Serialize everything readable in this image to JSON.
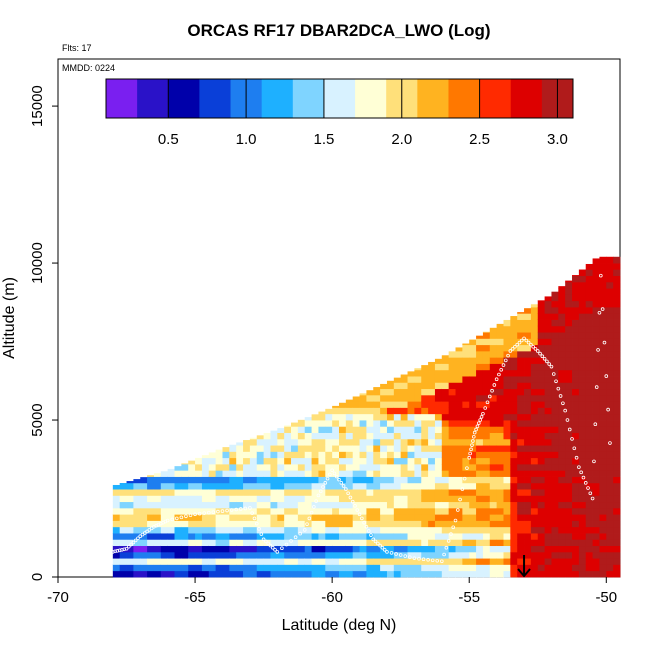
{
  "chart_data": {
    "type": "heatmap",
    "title": "ORCAS RF17 DBAR2DCA_LWO (Log)",
    "subtitle_left": "Flts: 17",
    "annotation": "MMDD: 0224",
    "xlabel": "Latitude (deg N)",
    "ylabel": "Altitude (m)",
    "xlim": [
      -70,
      -49.5
    ],
    "ylim": [
      0,
      16500
    ],
    "xticks": [
      -70,
      -65,
      -60,
      -55,
      -50
    ],
    "xtick_labels": [
      "-70",
      "-65",
      "-60",
      "-55",
      "-50"
    ],
    "yticks": [
      0,
      5000,
      10000,
      15000
    ],
    "ytick_labels": [
      "0",
      "5000",
      "10000",
      "15000"
    ],
    "colorbar": {
      "range": [
        0.1,
        3.1
      ],
      "ticks": [
        0.5,
        1.0,
        1.5,
        2.0,
        2.5,
        3.0
      ],
      "tick_labels": [
        "0.5",
        "1.0",
        "1.5",
        "2.0",
        "2.5",
        "3.0"
      ],
      "colors": [
        "#7a1ff0",
        "#2a12c8",
        "#0000aa",
        "#0a3fd8",
        "#1e7ef0",
        "#1eb0ff",
        "#7fd4ff",
        "#d8f2ff",
        "#ffffd6",
        "#ffe07a",
        "#ffb320",
        "#ff7800",
        "#ff2a00",
        "#dd0000",
        "#b01b1b"
      ]
    },
    "marker": {
      "type": "arrow-down",
      "x": -53.0
    },
    "grid": false,
    "legend": "colorbar-top-inset",
    "column_top_altitude": [
      [
        -68,
        2900
      ],
      [
        -66,
        3400
      ],
      [
        -64,
        4100
      ],
      [
        -62,
        4700
      ],
      [
        -60,
        5400
      ],
      [
        -58,
        6200
      ],
      [
        -56,
        7000
      ],
      [
        -54,
        8000
      ],
      [
        -52,
        9000
      ],
      [
        -50.3,
        10200
      ],
      [
        -49.7,
        10200
      ]
    ],
    "low_altitude_band_colorscale_value": 2.0,
    "note_values": "field shows log-scaled DBAR2DCA_LWO binned by latitude and altitude",
    "flight_track_points": [
      [
        -68,
        800
      ],
      [
        -67.5,
        900
      ],
      [
        -67,
        1300
      ],
      [
        -66.5,
        1600
      ],
      [
        -66,
        1800
      ],
      [
        -65,
        2000
      ],
      [
        -64,
        2100
      ],
      [
        -63,
        2200
      ],
      [
        -62.5,
        1200
      ],
      [
        -62,
        800
      ],
      [
        -61,
        1500
      ],
      [
        -60.5,
        2600
      ],
      [
        -60,
        3400
      ],
      [
        -59.5,
        2800
      ],
      [
        -59,
        2000
      ],
      [
        -58.5,
        1200
      ],
      [
        -58,
        800
      ],
      [
        -57,
        600
      ],
      [
        -56,
        500
      ],
      [
        -55.5,
        1800
      ],
      [
        -55,
        3800
      ],
      [
        -54.8,
        4600
      ],
      [
        -54.5,
        5200
      ],
      [
        -54,
        6300
      ],
      [
        -53.5,
        7200
      ],
      [
        -53,
        7600
      ],
      [
        -52.5,
        7200
      ],
      [
        -52,
        6700
      ],
      [
        -51.5,
        5300
      ],
      [
        -51,
        3500
      ],
      [
        -50.5,
        2500
      ],
      [
        -50.2,
        9600
      ],
      [
        -49.8,
        3200
      ]
    ]
  }
}
